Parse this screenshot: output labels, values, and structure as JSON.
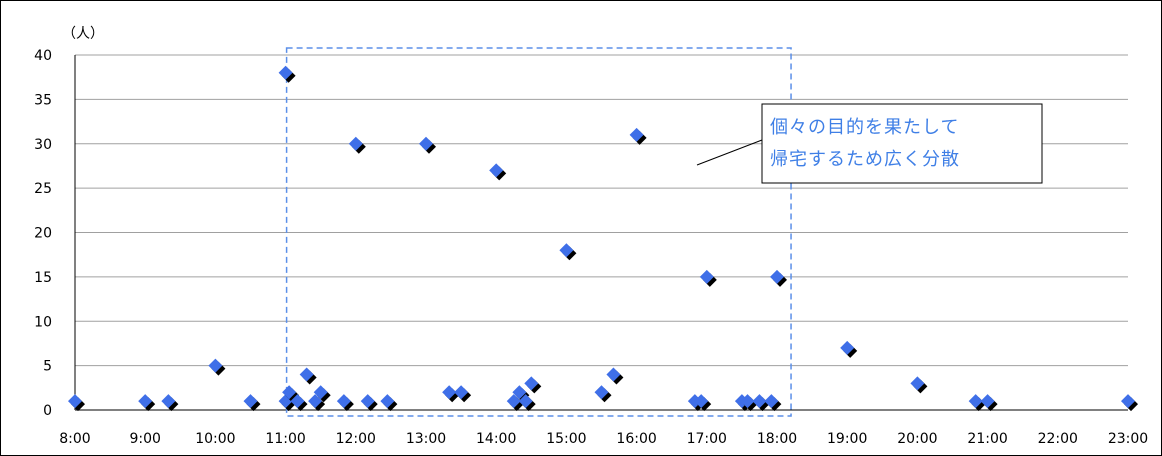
{
  "chart_data": {
    "type": "scatter",
    "title": "",
    "xlabel": "",
    "ylabel": "",
    "y_unit_label": "（人）",
    "xlim": [
      8,
      23
    ],
    "ylim": [
      0,
      40
    ],
    "x_ticks": [
      "8:00",
      "9:00",
      "10:00",
      "11:00",
      "12:00",
      "13:00",
      "14:00",
      "15:00",
      "16:00",
      "17:00",
      "18:00",
      "19:00",
      "20:00",
      "21:00",
      "22:00",
      "23:00"
    ],
    "y_ticks": [
      "0",
      "5",
      "10",
      "15",
      "20",
      "25",
      "30",
      "35",
      "40"
    ],
    "grid": "horizontal",
    "legend": "none",
    "marker": "diamond",
    "colors": {
      "marker": "#3f6fe8",
      "shadow": "#000000",
      "highlight_box": "#5b8fe8",
      "annotation_text": "#3f7fe6",
      "grid": "#a0a0a0"
    },
    "highlight_range": [
      11.0,
      18.2
    ],
    "annotation": {
      "lines": [
        "個々の目的を果たして",
        "帰宅するため広く分散"
      ]
    },
    "points": [
      {
        "x": 8.0,
        "y": 1
      },
      {
        "x": 9.0,
        "y": 1
      },
      {
        "x": 9.33,
        "y": 1
      },
      {
        "x": 10.0,
        "y": 5
      },
      {
        "x": 10.5,
        "y": 1
      },
      {
        "x": 11.0,
        "y": 38
      },
      {
        "x": 11.0,
        "y": 1
      },
      {
        "x": 11.05,
        "y": 2
      },
      {
        "x": 11.17,
        "y": 1
      },
      {
        "x": 11.3,
        "y": 4
      },
      {
        "x": 11.42,
        "y": 1
      },
      {
        "x": 11.5,
        "y": 2
      },
      {
        "x": 11.83,
        "y": 1
      },
      {
        "x": 12.0,
        "y": 30
      },
      {
        "x": 12.17,
        "y": 1
      },
      {
        "x": 12.45,
        "y": 1
      },
      {
        "x": 13.0,
        "y": 30
      },
      {
        "x": 13.33,
        "y": 2
      },
      {
        "x": 13.5,
        "y": 2
      },
      {
        "x": 14.0,
        "y": 27
      },
      {
        "x": 14.25,
        "y": 1
      },
      {
        "x": 14.33,
        "y": 2
      },
      {
        "x": 14.42,
        "y": 1
      },
      {
        "x": 14.5,
        "y": 3
      },
      {
        "x": 15.0,
        "y": 18
      },
      {
        "x": 15.5,
        "y": 2
      },
      {
        "x": 15.67,
        "y": 4
      },
      {
        "x": 16.0,
        "y": 31
      },
      {
        "x": 16.83,
        "y": 1
      },
      {
        "x": 16.92,
        "y": 1
      },
      {
        "x": 17.0,
        "y": 15
      },
      {
        "x": 17.5,
        "y": 1
      },
      {
        "x": 17.58,
        "y": 1
      },
      {
        "x": 17.75,
        "y": 1
      },
      {
        "x": 17.92,
        "y": 1
      },
      {
        "x": 18.0,
        "y": 15
      },
      {
        "x": 19.0,
        "y": 7
      },
      {
        "x": 20.0,
        "y": 3
      },
      {
        "x": 20.83,
        "y": 1
      },
      {
        "x": 21.0,
        "y": 1
      },
      {
        "x": 23.0,
        "y": 1
      }
    ]
  }
}
